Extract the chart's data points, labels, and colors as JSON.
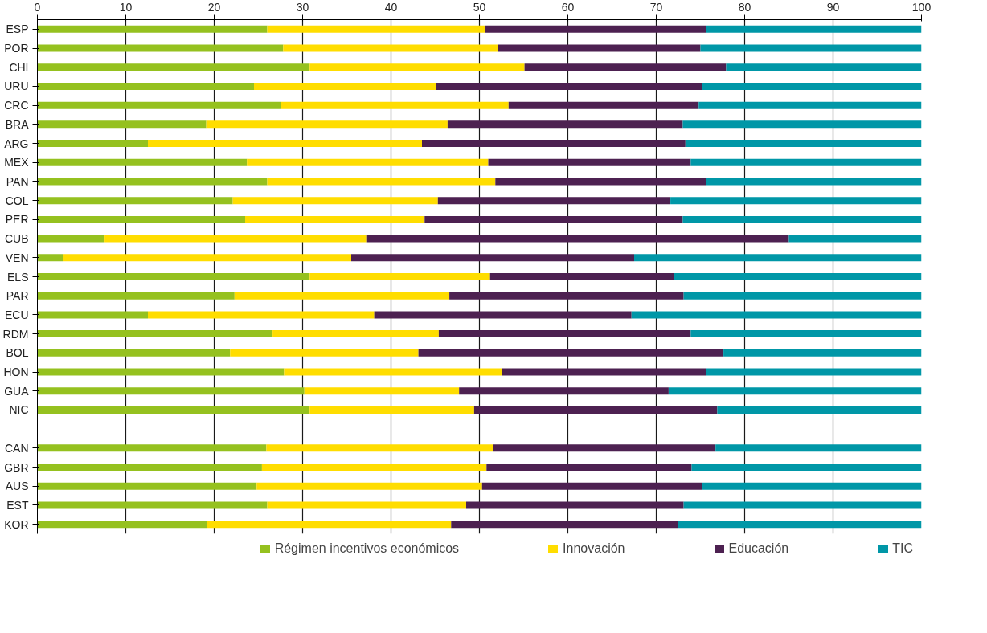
{
  "chart_data": {
    "type": "bar",
    "orientation": "horizontal",
    "stacked": true,
    "categories": [
      "ESP",
      "POR",
      "CHI",
      "URU",
      "CRC",
      "BRA",
      "ARG",
      "MEX",
      "PAN",
      "COL",
      "PER",
      "CUB",
      "VEN",
      "ELS",
      "PAR",
      "ECU",
      "RDM",
      "BOL",
      "HON",
      "GUA",
      "NIC",
      null,
      "CAN",
      "GBR",
      "AUS",
      "EST",
      "KOR"
    ],
    "series": [
      {
        "name": "Régimen incentivos económicos",
        "color": "#95c11f",
        "values": [
          26.0,
          27.8,
          30.8,
          24.5,
          27.5,
          19.1,
          12.5,
          23.7,
          26.0,
          22.1,
          23.5,
          7.6,
          2.9,
          30.8,
          22.3,
          12.5,
          26.6,
          21.8,
          27.9,
          30.2,
          30.8,
          null,
          25.9,
          25.4,
          24.8,
          26.0,
          19.2
        ]
      },
      {
        "name": "Innovación",
        "color": "#ffdd00",
        "values": [
          24.6,
          24.3,
          24.3,
          20.6,
          25.8,
          27.3,
          31.0,
          27.3,
          25.8,
          23.2,
          20.3,
          29.6,
          32.6,
          20.4,
          24.3,
          25.6,
          18.8,
          21.3,
          24.6,
          17.5,
          18.6,
          null,
          25.6,
          25.4,
          25.5,
          22.5,
          27.6
        ]
      },
      {
        "name": "Educación",
        "color": "#4d2151",
        "values": [
          25.0,
          22.9,
          22.8,
          30.1,
          21.5,
          26.6,
          29.8,
          22.9,
          23.8,
          26.3,
          29.2,
          47.8,
          32.0,
          20.8,
          26.5,
          29.1,
          28.5,
          34.5,
          23.1,
          23.7,
          27.5,
          null,
          25.2,
          23.2,
          24.9,
          24.6,
          25.7
        ]
      },
      {
        "name": "TIC",
        "color": "#0097a7",
        "values": [
          24.4,
          25.0,
          22.1,
          24.8,
          25.2,
          27.0,
          26.7,
          26.1,
          24.4,
          28.4,
          27.0,
          15.0,
          32.5,
          28.0,
          26.9,
          32.8,
          26.1,
          22.4,
          24.4,
          28.6,
          23.1,
          null,
          23.3,
          26.0,
          24.8,
          26.9,
          27.5
        ]
      }
    ],
    "xlim": [
      0,
      100
    ],
    "xticks": [
      0,
      10,
      20,
      30,
      40,
      50,
      60,
      70,
      80,
      90,
      100
    ],
    "grid": "x",
    "legend": "bottom"
  }
}
